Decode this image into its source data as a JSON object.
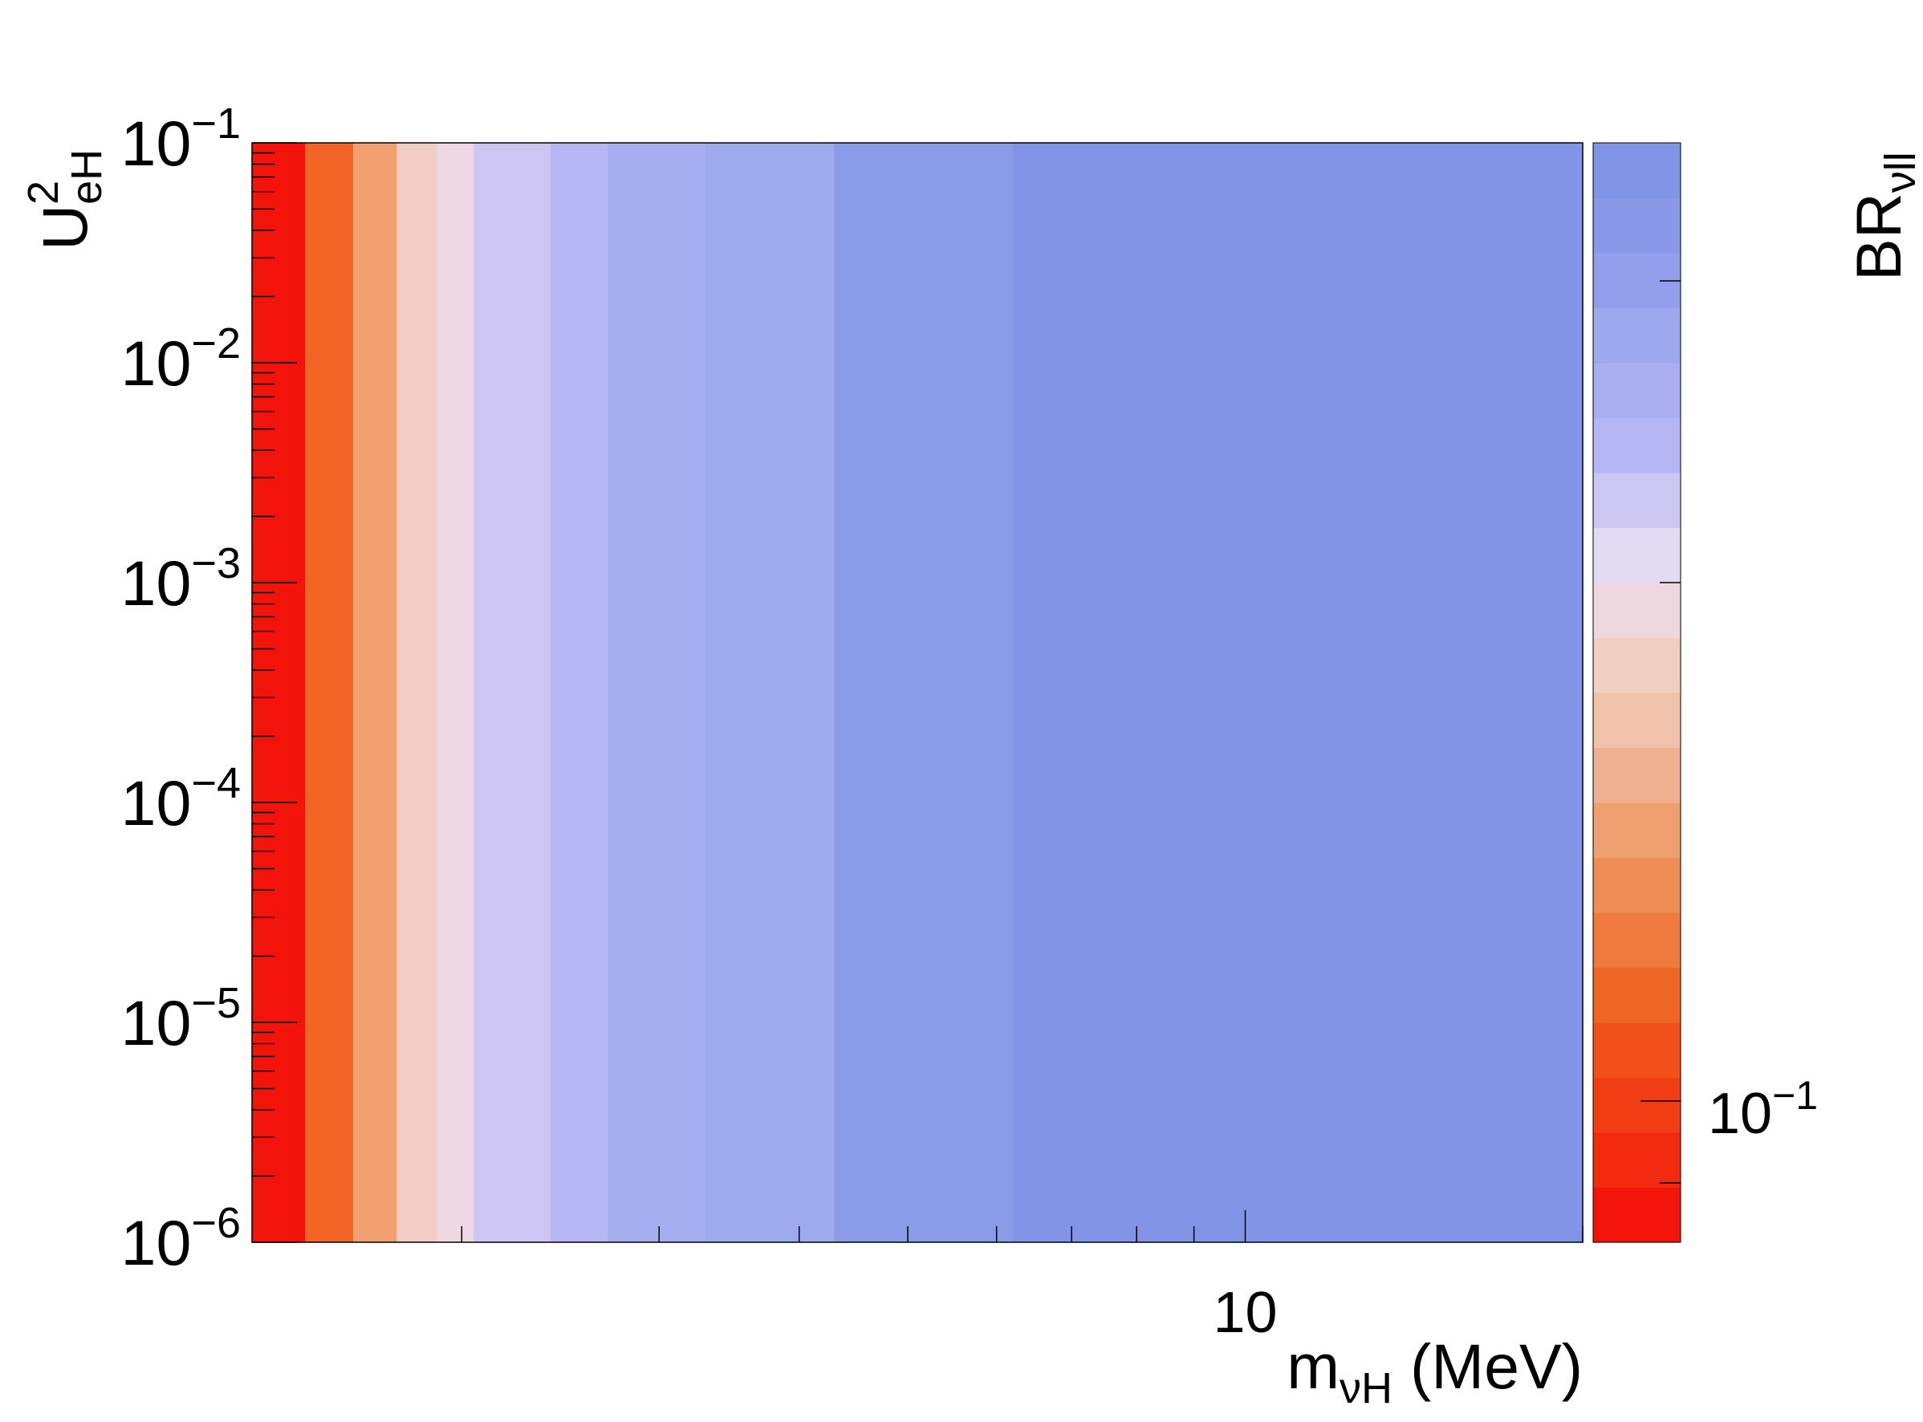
{
  "chart_data": {
    "type": "heatmap",
    "title": "",
    "x_scale": "log",
    "y_scale": "log",
    "xlim": [
      1.3,
      20
    ],
    "ylim": [
      1e-06,
      0.1
    ],
    "x_ticks": [
      {
        "value": 10,
        "label": "10"
      }
    ],
    "y_ticks": [
      {
        "value": 1e-06,
        "base": "10",
        "exp": "−6"
      },
      {
        "value": 1e-05,
        "base": "10",
        "exp": "−5"
      },
      {
        "value": 0.0001,
        "base": "10",
        "exp": "−4"
      },
      {
        "value": 0.001,
        "base": "10",
        "exp": "−3"
      },
      {
        "value": 0.01,
        "base": "10",
        "exp": "−2"
      },
      {
        "value": 0.1,
        "base": "10",
        "exp": "−1"
      }
    ],
    "x_bands": [
      {
        "x0": 1.3,
        "x1": 1.45,
        "color": "#f2140a"
      },
      {
        "x0": 1.45,
        "x1": 1.6,
        "color": "#f26426"
      },
      {
        "x0": 1.6,
        "x1": 1.75,
        "color": "#f2a070"
      },
      {
        "x0": 1.75,
        "x1": 1.9,
        "color": "#f2cdc6"
      },
      {
        "x0": 1.9,
        "x1": 2.05,
        "color": "#eed8e2"
      },
      {
        "x0": 2.05,
        "x1": 2.4,
        "color": "#cec6f2"
      },
      {
        "x0": 2.4,
        "x1": 2.7,
        "color": "#b6b6f4"
      },
      {
        "x0": 2.7,
        "x1": 3.3,
        "color": "#a6aef0"
      },
      {
        "x0": 3.3,
        "x1": 4.3,
        "color": "#9eaaee"
      },
      {
        "x0": 4.3,
        "x1": 6.2,
        "color": "#8a9ce8"
      },
      {
        "x0": 6.2,
        "x1": 20,
        "color": "#8294e6"
      }
    ],
    "colorbar": {
      "label_main": "BR",
      "label_sub": "νll",
      "tick_label": {
        "base": "10",
        "exp": "−1"
      },
      "colors_bottom_to_top": [
        "#f2140a",
        "#f22a10",
        "#f23e14",
        "#f2501a",
        "#ee6626",
        "#ee7a40",
        "#ee8e56",
        "#eea070",
        "#eeb090",
        "#f0c2aa",
        "#f0cec0",
        "#eed8e0",
        "#e2dcf2",
        "#ccc6f2",
        "#b6b6f4",
        "#a8aef0",
        "#9ea8ee",
        "#92a0ec",
        "#8a98e8",
        "#8294e6"
      ]
    },
    "xlabel": {
      "main": "m",
      "sub": "νH",
      "suffix": " (MeV)"
    },
    "ylabel": {
      "main": "U",
      "sup": "2",
      "sub": "eH"
    }
  }
}
